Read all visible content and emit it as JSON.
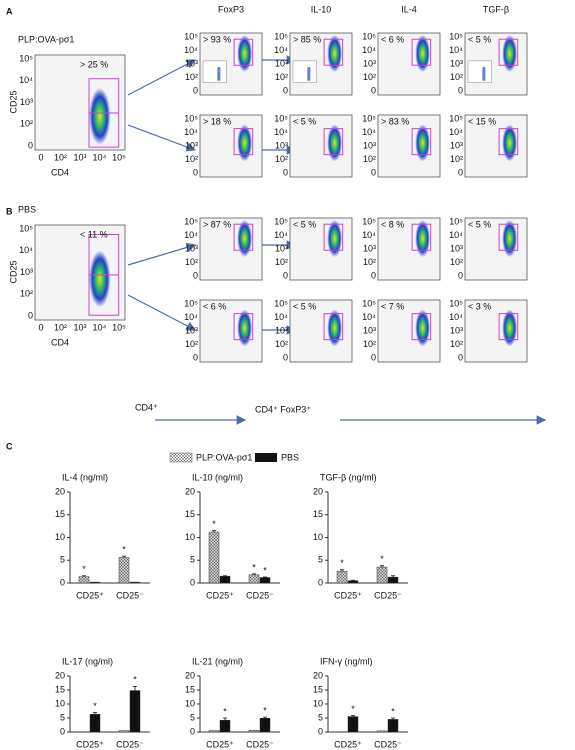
{
  "panel_labels": [
    "A",
    "B",
    "C"
  ],
  "flow": {
    "column_headers": [
      "FoxP3",
      "IL-10",
      "IL-4",
      "TGF-β"
    ],
    "axis": {
      "y_label": "CD25",
      "x_label": "CD4",
      "yticks": [
        "10⁵",
        "10⁴",
        "10³",
        "10²",
        "0"
      ],
      "xticks": [
        "0",
        "10²",
        "10³",
        "10⁴",
        "10⁵"
      ]
    },
    "panels": [
      {
        "sample": "PLP:OVA-pσ1",
        "gate_label": "> 25 %",
        "rows": [
          [
            "> 93 %",
            "> 85 %",
            "< 6 %",
            "< 5 %"
          ],
          [
            "> 18 %",
            "< 5 %",
            "> 83 %",
            "< 15 %"
          ]
        ]
      },
      {
        "sample": "PBS",
        "gate_label": "< 11 %",
        "rows": [
          [
            "> 87 %",
            "< 5 %",
            "< 8 %",
            "< 5 %"
          ],
          [
            "< 6 %",
            "< 5 %",
            "< 7 %",
            "< 3 %"
          ]
        ]
      }
    ],
    "footer": [
      "CD4⁺",
      "CD4⁺ FoxP3⁺"
    ]
  },
  "chart_data": [
    {
      "type": "bar",
      "title": "IL-4 (ng/ml)",
      "categories": [
        "CD25⁺",
        "CD25⁻"
      ],
      "ylim": [
        0,
        20
      ],
      "yticks": [
        0,
        5,
        10,
        15,
        20
      ],
      "series": [
        {
          "name": "PLP:OVA-pσ1",
          "color": "#d0d0d0",
          "pattern": "crosshatch",
          "values": [
            1.4,
            5.6
          ],
          "errors": [
            0.2,
            0.3
          ],
          "significance": [
            "*",
            "*"
          ]
        },
        {
          "name": "PBS",
          "color": "#111111",
          "values": [
            0.2,
            0.2
          ],
          "errors": [
            0,
            0
          ],
          "significance": [
            null,
            null
          ]
        }
      ]
    },
    {
      "type": "bar",
      "title": "IL-10 (ng/ml)",
      "categories": [
        "CD25⁺",
        "CD25⁻"
      ],
      "ylim": [
        0,
        20
      ],
      "yticks": [
        0,
        5,
        10,
        15,
        20
      ],
      "series": [
        {
          "color": "#d0d0d0",
          "pattern": "crosshatch",
          "values": [
            11.2,
            1.8
          ],
          "errors": [
            0.3,
            0.2
          ],
          "significance": [
            "*",
            "*"
          ]
        },
        {
          "color": "#111111",
          "values": [
            1.5,
            1.2
          ],
          "errors": [
            0.1,
            0.1
          ],
          "significance": [
            null,
            "*"
          ]
        }
      ]
    },
    {
      "type": "bar",
      "title": "TGF-β (ng/ml)",
      "categories": [
        "CD25⁺",
        "CD25⁻"
      ],
      "ylim": [
        0,
        20
      ],
      "yticks": [
        0,
        5,
        10,
        15,
        20
      ],
      "series": [
        {
          "color": "#d0d0d0",
          "pattern": "crosshatch",
          "values": [
            2.6,
            3.5
          ],
          "errors": [
            0.3,
            0.3
          ],
          "significance": [
            "*",
            "*"
          ]
        },
        {
          "color": "#111111",
          "values": [
            0.5,
            1.3
          ],
          "errors": [
            0.1,
            0.3
          ],
          "significance": [
            null,
            null
          ]
        }
      ]
    },
    {
      "type": "bar",
      "title": "IL-17 (ng/ml)",
      "categories": [
        "CD25⁺",
        "CD25⁻"
      ],
      "ylim": [
        0,
        20
      ],
      "yticks": [
        0,
        5,
        10,
        15,
        20
      ],
      "series": [
        {
          "color": "#d0d0d0",
          "pattern": "crosshatch",
          "values": [
            0.1,
            0.5
          ],
          "errors": [
            0,
            0
          ],
          "significance": [
            null,
            null
          ]
        },
        {
          "color": "#111111",
          "values": [
            6.3,
            14.8
          ],
          "errors": [
            0.7,
            1.5
          ],
          "significance": [
            "*",
            "*"
          ]
        }
      ]
    },
    {
      "type": "bar",
      "title": "IL-21 (ng/ml)",
      "categories": [
        "CD25⁺",
        "CD25⁻"
      ],
      "ylim": [
        0,
        20
      ],
      "yticks": [
        0,
        5,
        10,
        15,
        20
      ],
      "series": [
        {
          "color": "#d0d0d0",
          "pattern": "crosshatch",
          "values": [
            0.5,
            0.6
          ],
          "errors": [
            0,
            0
          ],
          "significance": [
            null,
            null
          ]
        },
        {
          "color": "#111111",
          "values": [
            4.2,
            4.9
          ],
          "errors": [
            0.8,
            0.4
          ],
          "significance": [
            "*",
            "*"
          ]
        }
      ]
    },
    {
      "type": "bar",
      "title": "IFN-γ (ng/ml)",
      "categories": [
        "CD25⁺",
        "CD25⁻"
      ],
      "ylim": [
        0,
        20
      ],
      "yticks": [
        0,
        5,
        10,
        15,
        20
      ],
      "series": [
        {
          "color": "#d0d0d0",
          "pattern": "crosshatch",
          "values": [
            0.1,
            0.4
          ],
          "errors": [
            0,
            0
          ],
          "significance": [
            null,
            null
          ]
        },
        {
          "color": "#111111",
          "values": [
            5.5,
            4.5
          ],
          "errors": [
            0.4,
            0.5
          ],
          "significance": [
            "*",
            "*"
          ]
        }
      ]
    }
  ]
}
